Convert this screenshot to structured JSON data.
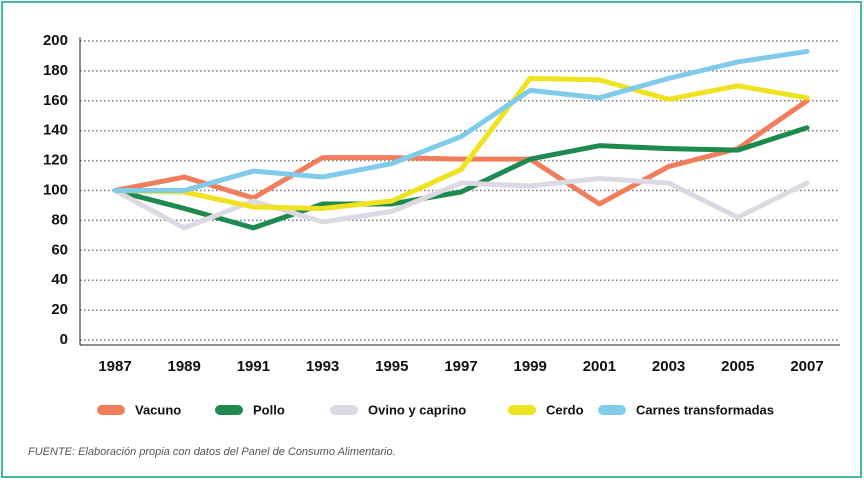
{
  "chart_data": {
    "type": "line",
    "categories": [
      "1987",
      "1989",
      "1991",
      "1993",
      "1995",
      "1997",
      "1999",
      "2001",
      "2003",
      "2005",
      "2007"
    ],
    "series": [
      {
        "name": "Vacuno",
        "color": "#f07d5c",
        "values": [
          100,
          109,
          95,
          122,
          122,
          121,
          121,
          91,
          116,
          128,
          160
        ]
      },
      {
        "name": "Pollo",
        "color": "#1e8a4f",
        "values": [
          100,
          88,
          75,
          91,
          91,
          99,
          121,
          130,
          128,
          127,
          142
        ]
      },
      {
        "name": "Ovino y caprino",
        "color": "#dcd9e5",
        "values": [
          100,
          75,
          93,
          79,
          86,
          105,
          103,
          108,
          105,
          82,
          105
        ]
      },
      {
        "name": "Cerdo",
        "color": "#efe21e",
        "values": [
          100,
          99,
          89,
          88,
          93,
          114,
          175,
          174,
          161,
          170,
          162
        ]
      },
      {
        "name": "Carnes transformadas",
        "color": "#7fcbe9",
        "values": [
          100,
          100,
          113,
          109,
          118,
          136,
          167,
          162,
          175,
          186,
          193
        ]
      }
    ],
    "ylim": [
      0,
      200
    ],
    "yticks": [
      0,
      20,
      40,
      60,
      80,
      100,
      120,
      140,
      160,
      180,
      200
    ],
    "grid": true,
    "source": "FUENTE: Elaboración propia con datos del Panel de Consumo Alimentario."
  }
}
